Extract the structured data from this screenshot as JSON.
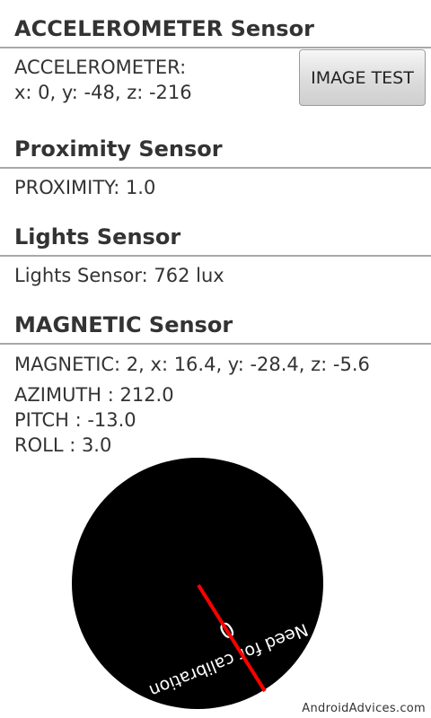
{
  "accelerometer": {
    "header": "ACCELEROMETER Sensor",
    "label": "ACCELEROMETER:",
    "values": "x: 0, y: -48, z: -216",
    "button_label": "IMAGE TEST"
  },
  "proximity": {
    "header": "Proximity Sensor",
    "reading": "PROXIMITY: 1.0"
  },
  "lights": {
    "header": "Lights Sensor",
    "reading": "Lights Sensor: 762 lux"
  },
  "magnetic": {
    "header": "MAGNETIC Sensor",
    "reading": "MAGNETIC: 2, x: 16.4, y: -28.4, z: -5.6",
    "azimuth": "AZIMUTH : 212.0",
    "pitch": "PITCH : -13.0",
    "roll": "ROLL : 3.0"
  },
  "compass": {
    "accuracy_value": "0",
    "calibration_text": "Need for calibration",
    "dial_color": "#000000",
    "needle_color": "#ff0000",
    "text_color": "#ffffff"
  },
  "watermark": "AndroidAdvices.com"
}
